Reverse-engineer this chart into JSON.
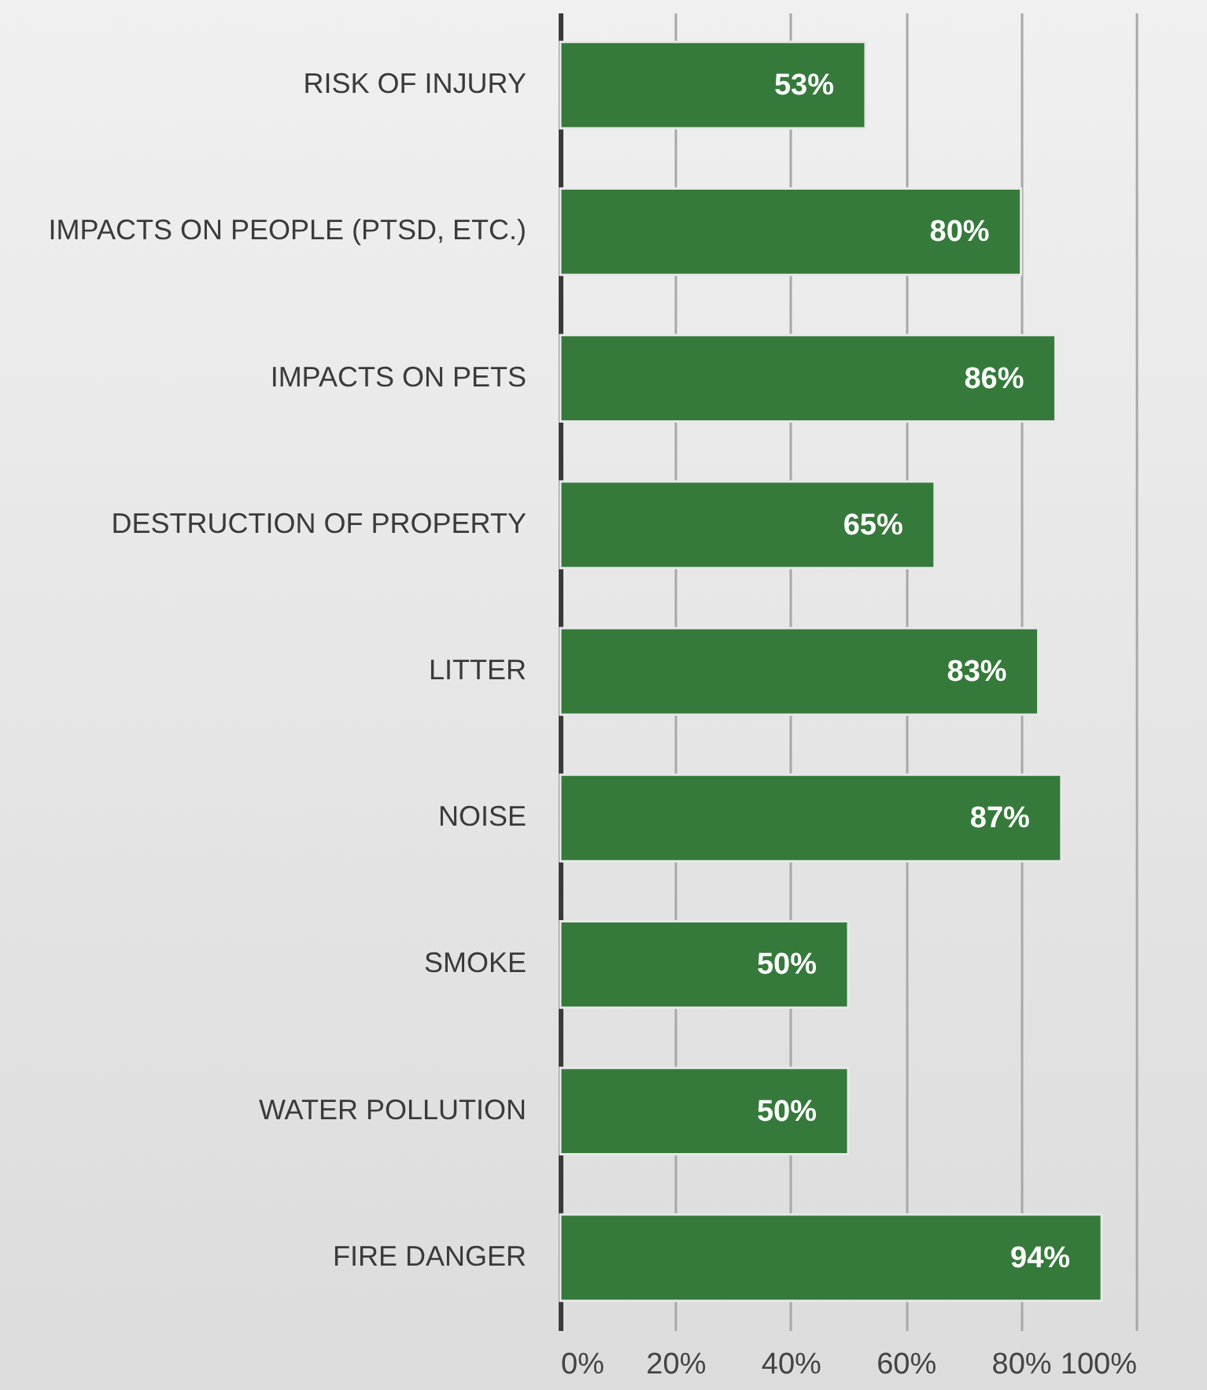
{
  "chart_data": {
    "type": "bar",
    "orientation": "horizontal",
    "categories": [
      "RISK OF INJURY",
      "IMPACTS ON PEOPLE (PTSD, ETC.)",
      "IMPACTS ON PETS",
      "DESTRUCTION OF PROPERTY",
      "LITTER",
      "NOISE",
      "SMOKE",
      "WATER POLLUTION",
      "FIRE DANGER"
    ],
    "values": [
      53,
      80,
      86,
      65,
      83,
      87,
      50,
      50,
      94
    ],
    "value_labels": [
      "53%",
      "80%",
      "86%",
      "65%",
      "83%",
      "87%",
      "50%",
      "50%",
      "94%"
    ],
    "color": "#357a3b",
    "xlim": [
      0,
      100
    ],
    "xticks": [
      {
        "value": 0,
        "label": "0%"
      },
      {
        "value": 20,
        "label": "20%"
      },
      {
        "value": 40,
        "label": "40%"
      },
      {
        "value": 60,
        "label": "60%"
      },
      {
        "value": 80,
        "label": "80%"
      },
      {
        "value": 100,
        "label": "100%"
      }
    ],
    "grid": "x"
  }
}
